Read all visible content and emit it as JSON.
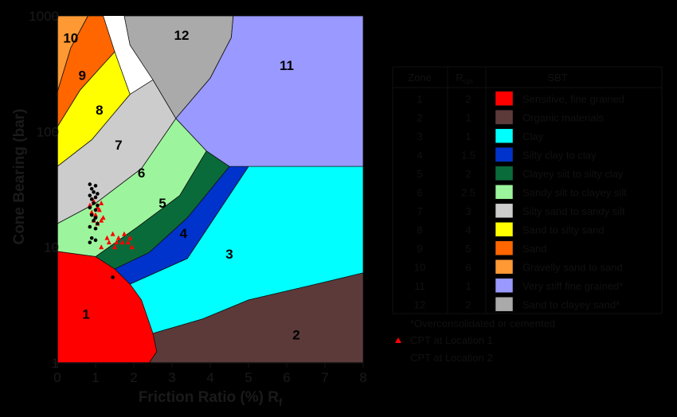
{
  "chart_data": {
    "type": "scatter",
    "xlabel": "Friction Ratio (%) R",
    "xlabel_subscript": "f",
    "ylabel": "Cone Bearing (bar)",
    "xlim": [
      0,
      8
    ],
    "ylim": [
      1,
      1000
    ],
    "yscale": "log",
    "x_ticks": [
      "0",
      "1",
      "2",
      "3",
      "4",
      "5",
      "6",
      "7",
      "8"
    ],
    "y_ticks": [
      "1",
      "10",
      "100",
      "1000"
    ],
    "zone_labels": [
      "1",
      "2",
      "3",
      "4",
      "5",
      "6",
      "7",
      "8",
      "9",
      "10",
      "11",
      "12"
    ],
    "legend_table": {
      "headers": [
        "Zone",
        "R",
        "SBT"
      ],
      "header_subscript": "cpt",
      "rows": [
        {
          "zone": "1",
          "r": "2",
          "sbt": "Sensitive, fine grained",
          "color": "#ff0000"
        },
        {
          "zone": "2",
          "r": "1",
          "sbt": "Organic materials",
          "color": "#5c3a3a"
        },
        {
          "zone": "3",
          "r": "1",
          "sbt": "Clay",
          "color": "#00ffff"
        },
        {
          "zone": "4",
          "r": "1.5",
          "sbt": "Silty clay to clay",
          "color": "#0033cc"
        },
        {
          "zone": "5",
          "r": "2",
          "sbt": "Clayey silt to silty clay",
          "color": "#0a6b3a"
        },
        {
          "zone": "6",
          "r": "2.5",
          "sbt": "Sandy silt to clayey silt",
          "color": "#9cf59c"
        },
        {
          "zone": "7",
          "r": "3",
          "sbt": "Silty sand to sandy silt",
          "color": "#cccccc"
        },
        {
          "zone": "8",
          "r": "4",
          "sbt": "Sand to silty sand",
          "color": "#ffff00"
        },
        {
          "zone": "9",
          "r": "5",
          "sbt": "Sand",
          "color": "#ff6600"
        },
        {
          "zone": "10",
          "r": "6",
          "sbt": "Gravelly sand to sand",
          "color": "#ff9933"
        },
        {
          "zone": "11",
          "r": "1",
          "sbt": "Very stiff fine grained*",
          "color": "#9999ff"
        },
        {
          "zone": "12",
          "r": "2",
          "sbt": "Sand to clayey sand*",
          "color": "#aaaaaa"
        }
      ],
      "footnote": "*Overconsolidated or cemented"
    },
    "series": [
      {
        "name": "CPT at Location 1",
        "marker": "triangle",
        "color": "#ff0000",
        "points": [
          [
            0.85,
            23
          ],
          [
            0.95,
            25
          ],
          [
            1.05,
            22
          ],
          [
            1.15,
            24
          ],
          [
            0.9,
            20
          ],
          [
            1.0,
            19
          ],
          [
            1.1,
            21
          ],
          [
            1.2,
            18
          ],
          [
            0.95,
            17
          ],
          [
            1.05,
            16
          ],
          [
            1.15,
            17
          ],
          [
            1.3,
            12
          ],
          [
            1.45,
            13
          ],
          [
            1.6,
            12
          ],
          [
            1.75,
            13
          ],
          [
            1.9,
            12
          ],
          [
            1.35,
            11
          ],
          [
            1.55,
            11
          ],
          [
            1.7,
            11
          ],
          [
            1.85,
            11
          ],
          [
            1.15,
            10
          ],
          [
            1.5,
            10
          ],
          [
            1.95,
            10
          ]
        ]
      },
      {
        "name": "CPT at Location 2",
        "marker": "circle",
        "color": "#000000",
        "points": [
          [
            0.85,
            35
          ],
          [
            1.0,
            34
          ],
          [
            0.9,
            32
          ],
          [
            0.95,
            30
          ],
          [
            1.05,
            29
          ],
          [
            0.85,
            28
          ],
          [
            1.0,
            27
          ],
          [
            0.9,
            26
          ],
          [
            0.95,
            24
          ],
          [
            1.05,
            23
          ],
          [
            0.85,
            22
          ],
          [
            1.0,
            21
          ],
          [
            0.9,
            19
          ],
          [
            1.0,
            18
          ],
          [
            0.95,
            17
          ],
          [
            1.05,
            16
          ],
          [
            0.85,
            15
          ],
          [
            1.0,
            14.5
          ],
          [
            0.9,
            12
          ],
          [
            1.0,
            11.5
          ],
          [
            0.85,
            11
          ],
          [
            1.45,
            5.5
          ]
        ]
      }
    ]
  }
}
